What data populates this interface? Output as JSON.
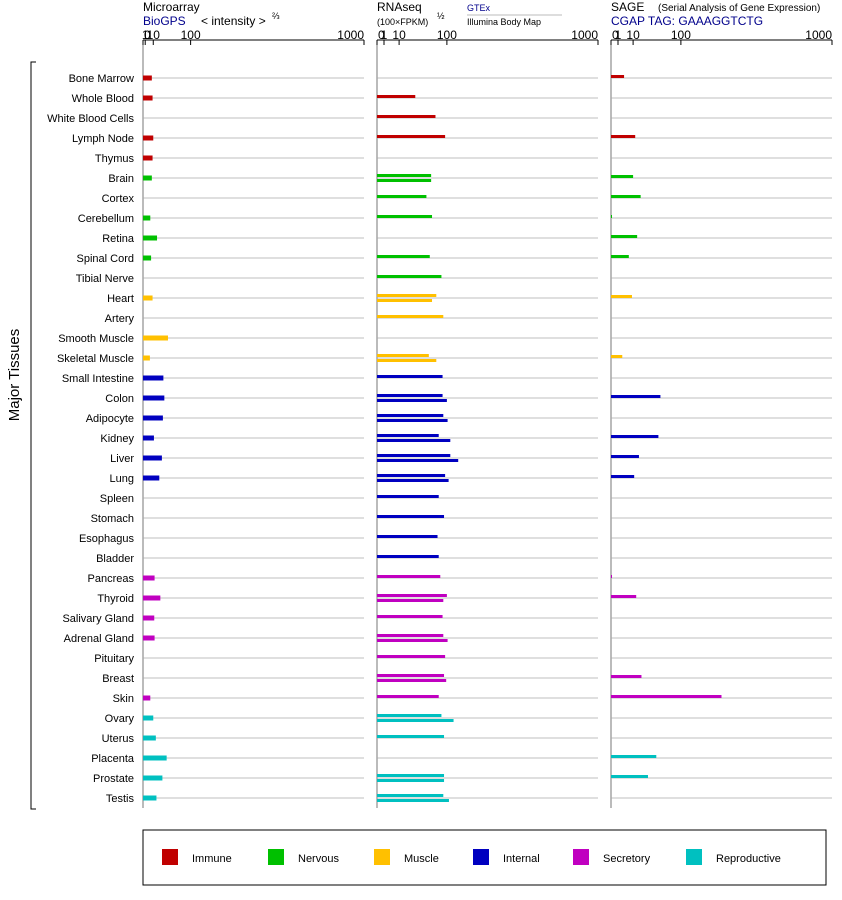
{
  "panels": {
    "microarray": {
      "title": "Microarray",
      "source": "BioGPS",
      "unit": "< intensity >",
      "unit_exp": "⅔"
    },
    "rnaseq": {
      "title": "RNAseq",
      "unit": "(100×FPKM)",
      "unit_exp": "½",
      "source_top": "GTEx",
      "source_bottom": "Illumina Body Map"
    },
    "sage": {
      "title": "SAGE",
      "subtitle": "(Serial Analysis of Gene Expression)",
      "tag": "CGAP TAG: GAAAGGTCTG"
    }
  },
  "axis_ticks": [
    "0",
    "1",
    "10",
    "100",
    "1000"
  ],
  "y_group_label": "Major Tissues",
  "colors": {
    "Immune": "#c00000",
    "Nervous": "#00c000",
    "Muscle": "#ffc000",
    "Internal": "#0000c0",
    "Secretory": "#c000c0",
    "Reproductive": "#00c0c0"
  },
  "legend": [
    "Immune",
    "Nervous",
    "Muscle",
    "Internal",
    "Secretory",
    "Reproductive"
  ],
  "chart_data": {
    "type": "bar",
    "x_scale": "power (microarray exponent 2/3, RNAseq exponent 1/2)",
    "xlim": [
      0,
      1000
    ],
    "tissues": [
      {
        "name": "Bone Marrow",
        "system": "Immune",
        "microarray": 8,
        "rnaseq": [],
        "sage": [
          3.5
        ]
      },
      {
        "name": "Whole Blood",
        "system": "Immune",
        "microarray": 9,
        "rnaseq": [
          30
        ],
        "sage": []
      },
      {
        "name": "White Blood Cells",
        "system": "Immune",
        "microarray": null,
        "rnaseq": [
          70
        ],
        "sage": []
      },
      {
        "name": "Lymph Node",
        "system": "Immune",
        "microarray": 10,
        "rnaseq": [
          95
        ],
        "sage": [
          12
        ]
      },
      {
        "name": "Thymus",
        "system": "Immune",
        "microarray": 9,
        "rnaseq": [],
        "sage": []
      },
      {
        "name": "Brain",
        "system": "Nervous",
        "microarray": 8,
        "rnaseq": [
          60,
          60
        ],
        "sage": [
          10
        ]
      },
      {
        "name": "Cortex",
        "system": "Nervous",
        "microarray": null,
        "rnaseq": [
          50
        ],
        "sage": [
          18
        ]
      },
      {
        "name": "Cerebellum",
        "system": "Nervous",
        "microarray": 6,
        "rnaseq": [
          62
        ],
        "sage": [
          0.02
        ]
      },
      {
        "name": "Retina",
        "system": "Nervous",
        "microarray": 16,
        "rnaseq": [],
        "sage": [
          14
        ]
      },
      {
        "name": "Spinal Cord",
        "system": "Nervous",
        "microarray": 7,
        "rnaseq": [
          57
        ],
        "sage": [
          6.5
        ]
      },
      {
        "name": "Tibial Nerve",
        "system": "Nervous",
        "microarray": null,
        "rnaseq": [
          85
        ],
        "sage": []
      },
      {
        "name": "Heart",
        "system": "Muscle",
        "microarray": 9,
        "rnaseq": [
          72,
          62
        ],
        "sage": [
          9
        ]
      },
      {
        "name": "Artery",
        "system": "Muscle",
        "microarray": null,
        "rnaseq": [
          90
        ],
        "sage": []
      },
      {
        "name": "Smooth Muscle",
        "system": "Muscle",
        "microarray": 38,
        "rnaseq": [],
        "sage": []
      },
      {
        "name": "Skeletal Muscle",
        "system": "Muscle",
        "microarray": 5.5,
        "rnaseq": [
          55,
          72
        ],
        "sage": [
          2.6
        ]
      },
      {
        "name": "Small Intestine",
        "system": "Internal",
        "microarray": 28,
        "rnaseq": [
          88
        ],
        "sage": []
      },
      {
        "name": "Colon",
        "system": "Internal",
        "microarray": 30,
        "rnaseq": [
          88,
          100
        ],
        "sage": [
          50
        ]
      },
      {
        "name": "Adipocyte",
        "system": "Internal",
        "microarray": 27,
        "rnaseq": [
          90,
          102
        ],
        "sage": []
      },
      {
        "name": "Kidney",
        "system": "Internal",
        "microarray": 11,
        "rnaseq": [
          78,
          110
        ],
        "sage": [
          46
        ]
      },
      {
        "name": "Liver",
        "system": "Internal",
        "microarray": 25,
        "rnaseq": [
          110,
          135
        ],
        "sage": [
          16
        ]
      },
      {
        "name": "Lung",
        "system": "Internal",
        "microarray": 20,
        "rnaseq": [
          95,
          105
        ],
        "sage": [
          11
        ]
      },
      {
        "name": "Spleen",
        "system": "Internal",
        "microarray": null,
        "rnaseq": [
          78
        ],
        "sage": []
      },
      {
        "name": "Stomach",
        "system": "Internal",
        "microarray": null,
        "rnaseq": [
          92
        ],
        "sage": []
      },
      {
        "name": "Esophagus",
        "system": "Internal",
        "microarray": null,
        "rnaseq": [
          75
        ],
        "sage": []
      },
      {
        "name": "Bladder",
        "system": "Internal",
        "microarray": null,
        "rnaseq": [
          78
        ],
        "sage": []
      },
      {
        "name": "Pancreas",
        "system": "Secretory",
        "microarray": 12,
        "rnaseq": [
          82
        ],
        "sage": [
          0.02
        ]
      },
      {
        "name": "Thyroid",
        "system": "Secretory",
        "microarray": 22,
        "rnaseq": [
          100,
          90
        ],
        "sage": [
          13
        ]
      },
      {
        "name": "Salivary Gland",
        "system": "Secretory",
        "microarray": 11.5,
        "rnaseq": [
          88
        ],
        "sage": []
      },
      {
        "name": "Adrenal Gland",
        "system": "Secretory",
        "microarray": 12,
        "rnaseq": [
          90,
          102
        ],
        "sage": []
      },
      {
        "name": "Pituitary",
        "system": "Secretory",
        "microarray": null,
        "rnaseq": [
          95
        ],
        "sage": []
      },
      {
        "name": "Breast",
        "system": "Secretory",
        "microarray": null,
        "rnaseq": [
          92,
          98
        ],
        "sage": [
          19
        ]
      },
      {
        "name": "Skin",
        "system": "Secretory",
        "microarray": 6,
        "rnaseq": [
          78
        ],
        "sage": [
          250
        ]
      },
      {
        "name": "Ovary",
        "system": "Reproductive",
        "microarray": 10,
        "rnaseq": [
          85,
          120
        ],
        "sage": []
      },
      {
        "name": "Uterus",
        "system": "Reproductive",
        "microarray": 14,
        "rnaseq": [
          92
        ],
        "sage": []
      },
      {
        "name": "Placenta",
        "system": "Reproductive",
        "microarray": 35,
        "rnaseq": [],
        "sage": [
          42
        ]
      },
      {
        "name": "Prostate",
        "system": "Reproductive",
        "microarray": 26,
        "rnaseq": [
          92,
          92
        ],
        "sage": [
          28
        ]
      },
      {
        "name": "Testis",
        "system": "Reproductive",
        "microarray": 15,
        "rnaseq": [
          90,
          106
        ],
        "sage": []
      }
    ]
  }
}
